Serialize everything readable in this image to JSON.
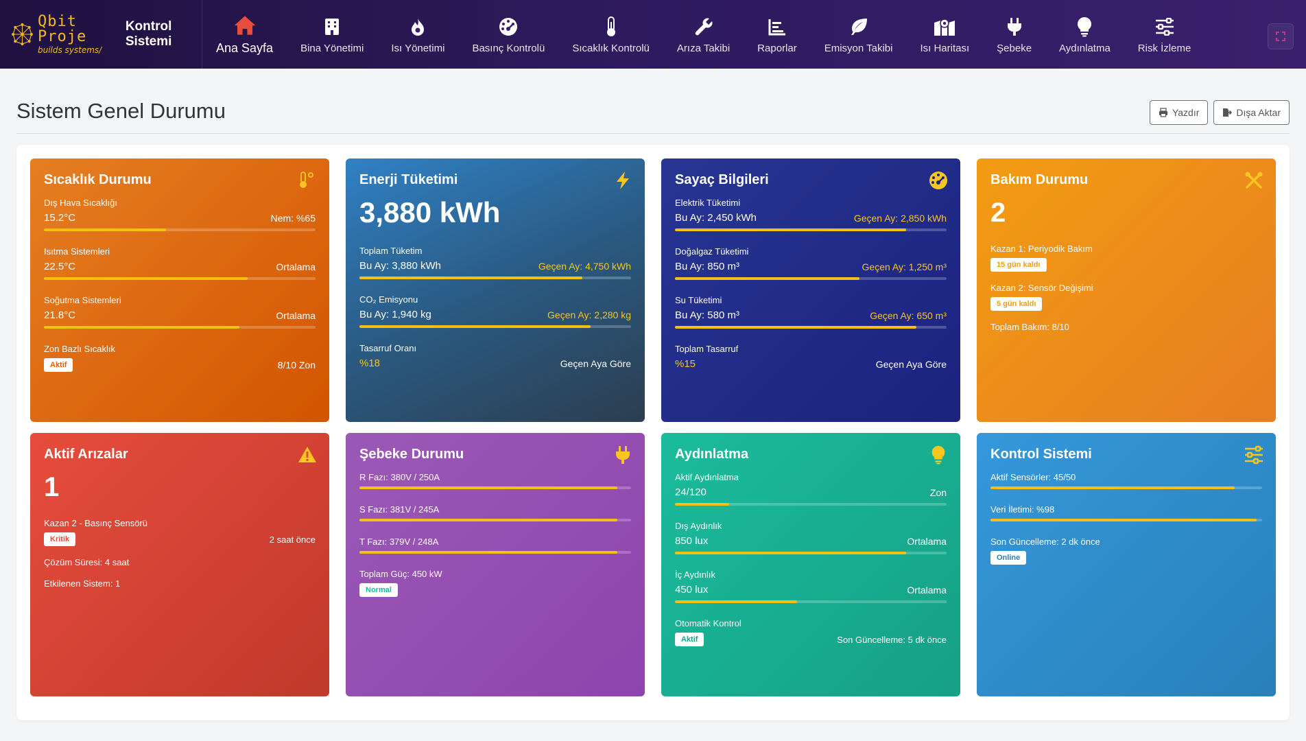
{
  "brand": {
    "logo_word": "Qbit Proje",
    "logo_sub": "builds systems/",
    "title": "Kontrol Sistemi"
  },
  "nav": [
    {
      "label": "Ana Sayfa",
      "icon": "home-icon",
      "active": true
    },
    {
      "label": "Bina Yönetimi",
      "icon": "building-icon"
    },
    {
      "label": "Isı Yönetimi",
      "icon": "flame-icon"
    },
    {
      "label": "Basınç Kontrolü",
      "icon": "gauge-icon"
    },
    {
      "label": "Sıcaklık Kontrolü",
      "icon": "thermometer-icon"
    },
    {
      "label": "Arıza Takibi",
      "icon": "wrench-icon"
    },
    {
      "label": "Raporlar",
      "icon": "chart-icon"
    },
    {
      "label": "Emisyon Takibi",
      "icon": "leaf-icon"
    },
    {
      "label": "Isı Haritası",
      "icon": "map-icon"
    },
    {
      "label": "Şebeke",
      "icon": "plug-icon"
    },
    {
      "label": "Aydınlatma",
      "icon": "lightbulb-icon"
    },
    {
      "label": "Risk İzleme",
      "icon": "sliders-icon"
    }
  ],
  "header": {
    "title": "Sistem Genel Durumu",
    "print_label": "Yazdır",
    "export_label": "Dışa Aktar"
  },
  "colors": {
    "accent_yellow": "#f5c014",
    "nav_bg": "#2d1a5c",
    "home_icon": "#e74c3c"
  },
  "cards": {
    "temperature": {
      "title": "Sıcaklık Durumu",
      "outdoor": {
        "label": "Dış Hava Sıcaklığı",
        "value": "15.2°C",
        "right": "Nem: %65",
        "progress": 0.45
      },
      "heating": {
        "label": "Isıtma Sistemleri",
        "value": "22.5°C",
        "right": "Ortalama",
        "progress": 0.75
      },
      "cooling": {
        "label": "Soğutma Sistemleri",
        "value": "21.8°C",
        "right": "Ortalama",
        "progress": 0.72
      },
      "zone": {
        "label": "Zon Bazlı Sıcaklık",
        "badge": "Aktif",
        "right": "8/10 Zon"
      }
    },
    "energy": {
      "title": "Enerji Tüketimi",
      "total": "3,880 kWh",
      "consumption": {
        "label": "Toplam Tüketim",
        "value": "Bu Ay: 3,880 kWh",
        "right": "Geçen Ay: 4,750 kWh",
        "progress": 0.82
      },
      "co2": {
        "label": "CO₂ Emisyonu",
        "value": "Bu Ay: 1,940 kg",
        "right": "Geçen Ay: 2,280 kg",
        "progress": 0.85
      },
      "savings": {
        "label": "Tasarruf Oranı",
        "value": "%18",
        "right": "Geçen Aya Göre"
      }
    },
    "meter": {
      "title": "Sayaç Bilgileri",
      "electric": {
        "label": "Elektrik Tüketimi",
        "value": "Bu Ay: 2,450 kWh",
        "right": "Geçen Ay: 2,850 kWh",
        "progress": 0.85
      },
      "gas": {
        "label": "Doğalgaz Tüketimi",
        "value": "Bu Ay: 850 m³",
        "right": "Geçen Ay: 1,250 m³",
        "progress": 0.68
      },
      "water": {
        "label": "Su Tüketimi",
        "value": "Bu Ay: 580 m³",
        "right": "Geçen Ay: 650 m³",
        "progress": 0.89
      },
      "savings": {
        "label": "Toplam Tasarruf",
        "value": "%15",
        "right": "Geçen Aya Göre"
      }
    },
    "maintenance": {
      "title": "Bakım Durumu",
      "count": "2",
      "item1": {
        "label": "Kazan 1: Periyodik Bakım",
        "badge": "15 gün kaldı"
      },
      "item2": {
        "label": "Kazan 2: Sensör Değişimi",
        "badge": "5 gün kaldı"
      },
      "total": "Toplam Bakım: 8/10"
    },
    "faults": {
      "title": "Aktif Arızalar",
      "count": "1",
      "item": {
        "label": "Kazan 2 - Basınç Sensörü",
        "badge": "Kritik",
        "right": "2 saat önce"
      },
      "resolution": "Çözüm Süresi: 4 saat",
      "affected": "Etkilenen Sistem: 1"
    },
    "grid": {
      "title": "Şebeke Durumu",
      "r": {
        "label": "R Fazı: 380V / 250A",
        "progress": 0.95
      },
      "s": {
        "label": "S Fazı: 381V / 245A",
        "progress": 0.95
      },
      "t": {
        "label": "T Fazı: 379V / 248A",
        "progress": 0.95
      },
      "power": {
        "label": "Toplam Güç: 450 kW",
        "badge": "Normal"
      }
    },
    "lighting": {
      "title": "Aydınlatma",
      "active": {
        "label": "Aktif Aydınlatma",
        "value": "24/120",
        "right": "Zon",
        "progress": 0.2
      },
      "outdoor": {
        "label": "Dış Aydınlık",
        "value": "850 lux",
        "right": "Ortalama",
        "progress": 0.85
      },
      "indoor": {
        "label": "İç Aydınlık",
        "value": "450 lux",
        "right": "Ortalama",
        "progress": 0.45
      },
      "auto": {
        "label": "Otomatik Kontrol",
        "badge": "Aktif",
        "right": "Son Güncelleme: 5 dk önce"
      }
    },
    "control": {
      "title": "Kontrol Sistemi",
      "sensors": {
        "label": "Aktif Sensörler: 45/50",
        "progress": 0.9
      },
      "data": {
        "label": "Veri İletimi: %98",
        "progress": 0.98
      },
      "update": {
        "label": "Son Güncelleme: 2 dk önce",
        "badge": "Online"
      }
    }
  }
}
